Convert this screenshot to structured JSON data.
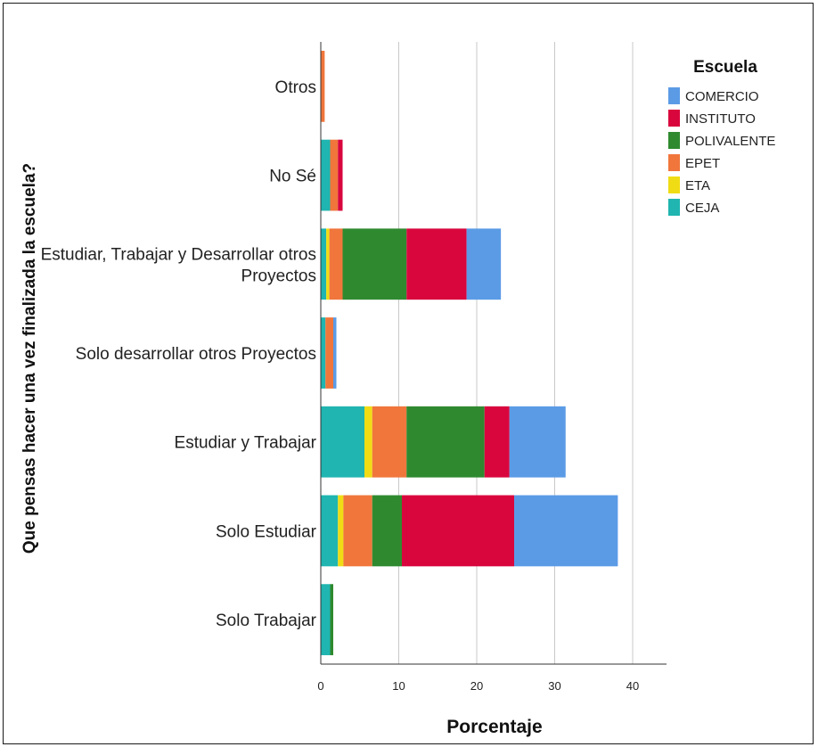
{
  "chart_data": {
    "type": "bar",
    "orientation": "horizontal",
    "stacked": true,
    "title": "",
    "xlabel": "Porcentaje",
    "ylabel": "Que pensas hacer una vez finalizada la escuela?",
    "xlim": [
      0,
      44
    ],
    "xticks": [
      "0",
      "10",
      "20",
      "30",
      "40"
    ],
    "xtick_values": [
      0,
      10,
      20,
      30,
      40
    ],
    "grid": true,
    "legend_title": "Escuela",
    "legend_position": "top-right",
    "categories": [
      [
        "Otros"
      ],
      [
        "No Sé"
      ],
      [
        "Estudiar, Trabajar y Desarrollar otros",
        "Proyectos"
      ],
      [
        "Solo desarrollar otros Proyectos"
      ],
      [
        "Estudiar y Trabajar"
      ],
      [
        "Solo Estudiar"
      ],
      [
        "Solo Trabajar"
      ]
    ],
    "stack_order": [
      "CEJA",
      "ETA",
      "EPET",
      "POLIVALENTE",
      "INSTITUTO",
      "COMERCIO"
    ],
    "series": [
      {
        "name": "COMERCIO",
        "color": "#5b9be6",
        "values": [
          0,
          0,
          4.4,
          0.4,
          7.2,
          13.3,
          0
        ]
      },
      {
        "name": "INSTITUTO",
        "color": "#d9063e",
        "values": [
          0,
          0.6,
          7.7,
          0,
          3.2,
          14.4,
          0
        ]
      },
      {
        "name": "POLIVALENTE",
        "color": "#2f8a2f",
        "values": [
          0,
          0,
          8.2,
          0,
          10.0,
          3.8,
          0.4
        ]
      },
      {
        "name": "EPET",
        "color": "#f0763c",
        "values": [
          0.5,
          1.0,
          1.7,
          1.0,
          4.4,
          3.7,
          0
        ]
      },
      {
        "name": "ETA",
        "color": "#f0dc14",
        "values": [
          0,
          0,
          0.4,
          0,
          1.0,
          0.7,
          0
        ]
      },
      {
        "name": "CEJA",
        "color": "#20b5b0",
        "values": [
          0,
          1.2,
          0.7,
          0.6,
          5.6,
          2.2,
          1.2
        ]
      }
    ]
  }
}
